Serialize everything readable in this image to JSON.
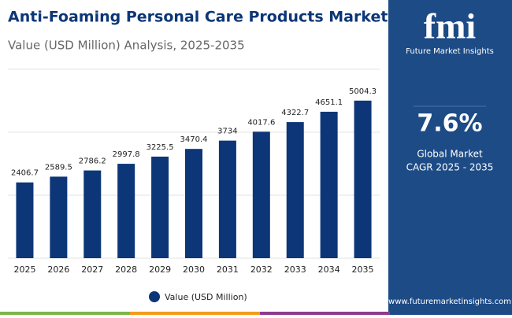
{
  "chart_data": {
    "type": "bar",
    "title": "Anti-Foaming Personal Care Products Market",
    "subtitle": "Value (USD Million) Analysis, 2025-2035",
    "categories": [
      "2025",
      "2026",
      "2027",
      "2028",
      "2029",
      "2030",
      "2031",
      "2032",
      "2033",
      "2034",
      "2035"
    ],
    "series": [
      {
        "name": "Value (USD Million)",
        "color": "#0c3677",
        "values": [
          2406.7,
          2589.5,
          2786.2,
          2997.8,
          3225.5,
          3470.4,
          3734,
          4017.6,
          4322.7,
          4651.1,
          5004.3
        ]
      }
    ],
    "ylim": [
      0,
      6000
    ],
    "yticks": [
      0,
      2000,
      4000,
      6000
    ],
    "grid": true,
    "legend": "bottom"
  },
  "sidebar": {
    "brand": "fmi",
    "brand_name": "Future Market Insights",
    "cagr": "7.6%",
    "cagr_caption_1": "Global Market",
    "cagr_caption_2": "CAGR 2025 - 2035",
    "website": "www.futuremarketinsights.com"
  }
}
